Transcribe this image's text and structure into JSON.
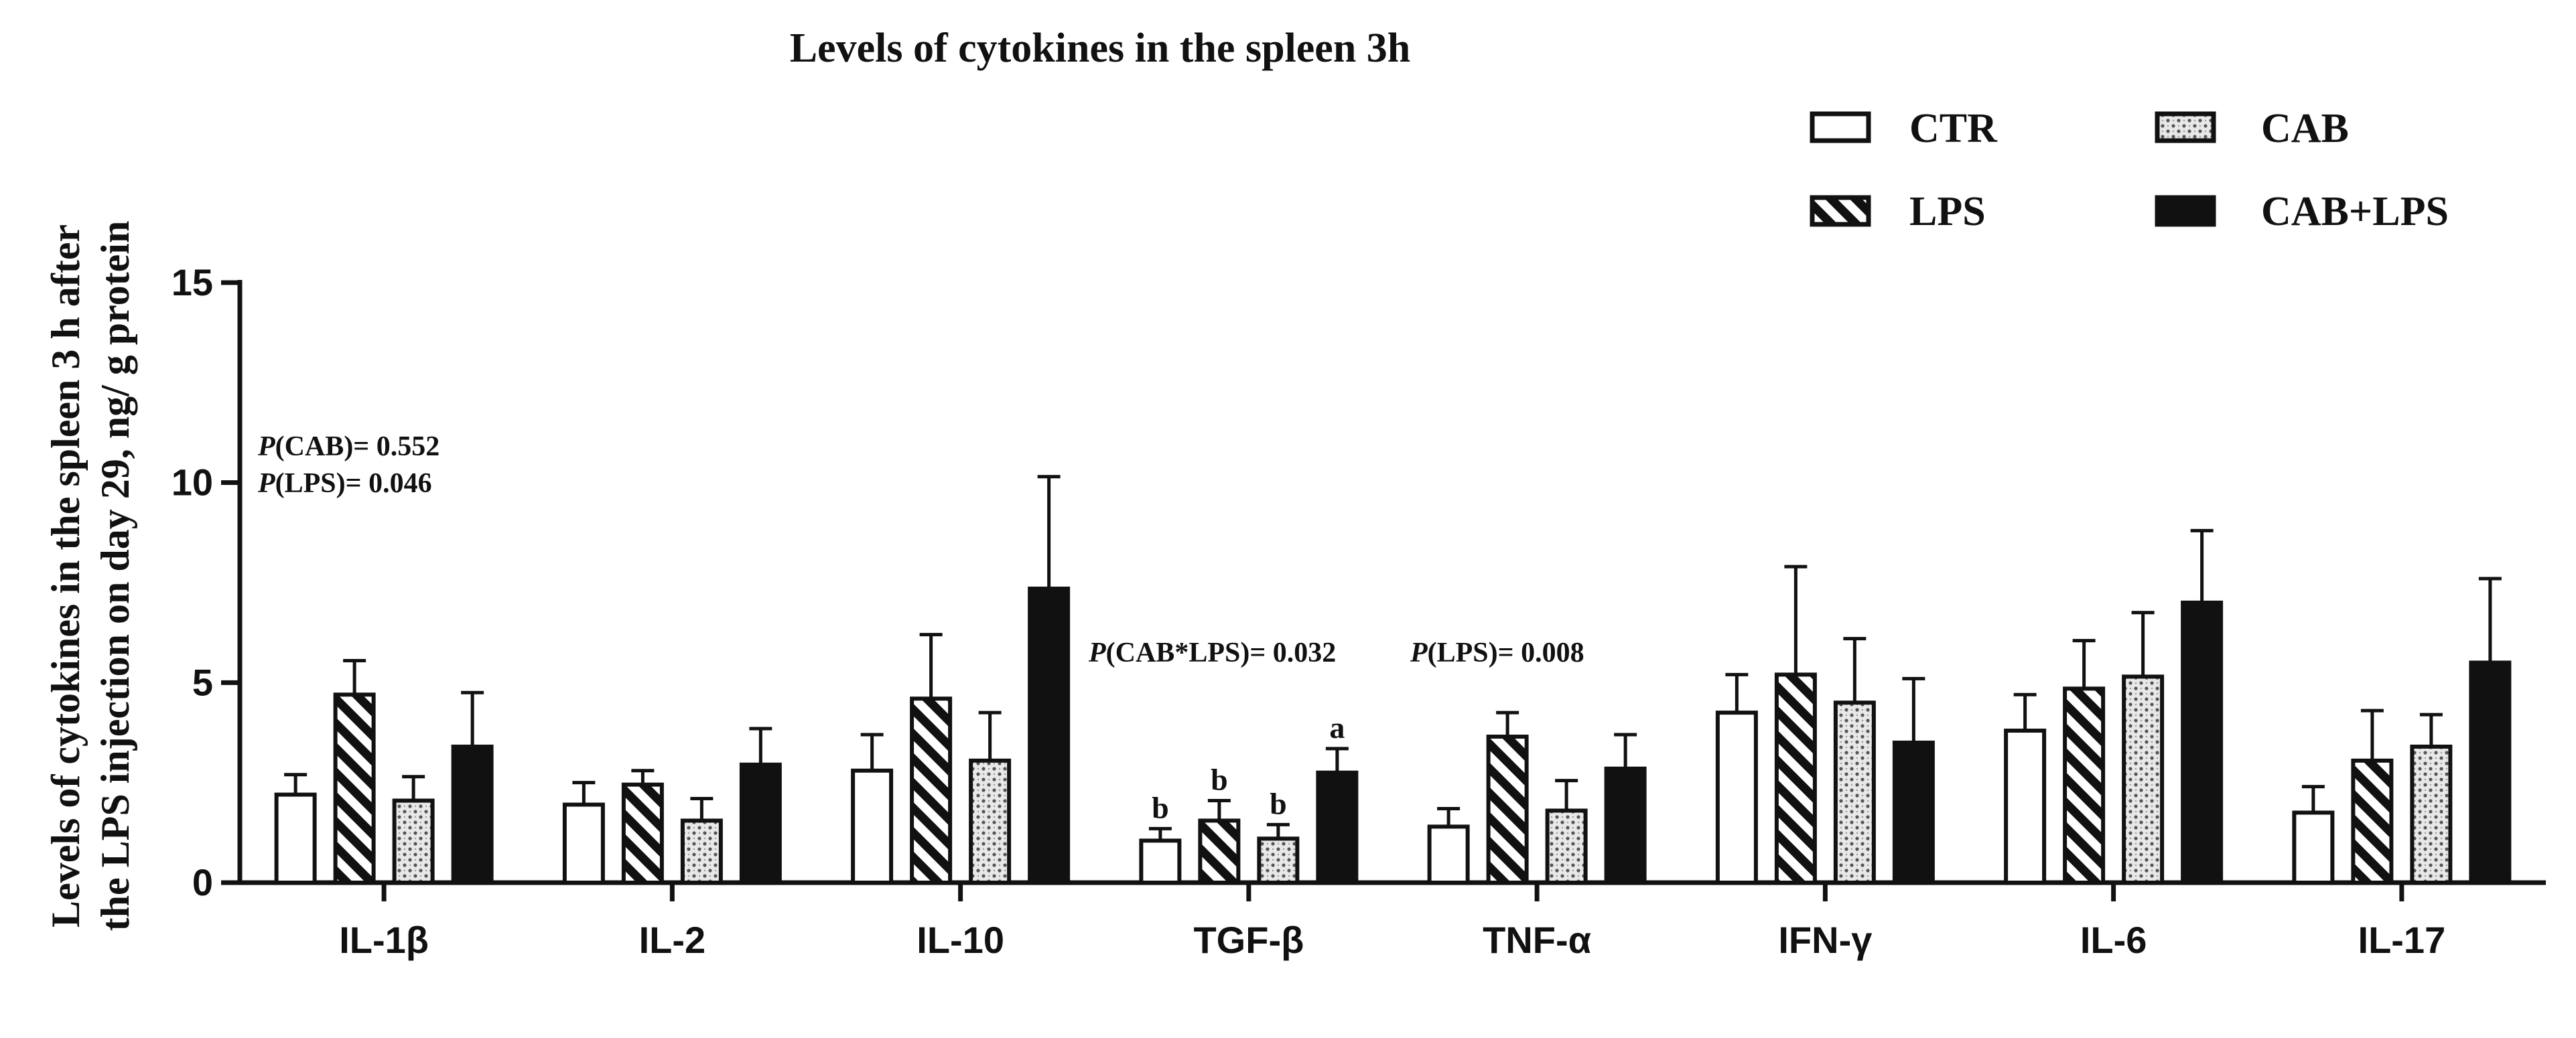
{
  "chart_data": {
    "type": "bar",
    "title": "Levels of cytokines in the spleen 3h",
    "ylabel_lines": [
      "Levels of cytokines in the spleen 3 h after",
      "the LPS injection on day 29,   ng/ g protein"
    ],
    "xlabel": "",
    "ylim": [
      0,
      15
    ],
    "yticks": [
      0,
      5,
      10,
      15
    ],
    "categories": [
      "IL-1β",
      "IL-2",
      "IL-10",
      "TGF-β",
      "TNF-α",
      "IFN-γ",
      "IL-6",
      "IL-17"
    ],
    "series": [
      {
        "name": "CTR",
        "pattern": "open",
        "values": [
          2.2,
          1.95,
          2.8,
          1.05,
          1.4,
          4.25,
          3.8,
          1.75
        ],
        "errors": [
          0.5,
          0.55,
          0.9,
          0.3,
          0.45,
          0.95,
          0.9,
          0.65
        ]
      },
      {
        "name": "LPS",
        "pattern": "hatch",
        "values": [
          4.7,
          2.45,
          4.6,
          1.55,
          3.65,
          5.2,
          4.85,
          3.05
        ],
        "errors": [
          0.85,
          0.35,
          1.6,
          0.5,
          0.6,
          2.7,
          1.2,
          1.25
        ]
      },
      {
        "name": "CAB",
        "pattern": "dots",
        "values": [
          2.05,
          1.55,
          3.05,
          1.1,
          1.8,
          4.5,
          5.15,
          3.4
        ],
        "errors": [
          0.6,
          0.55,
          1.2,
          0.35,
          0.75,
          1.6,
          1.6,
          0.8
        ]
      },
      {
        "name": "CAB+LPS",
        "pattern": "solid",
        "values": [
          3.4,
          2.95,
          7.35,
          2.75,
          2.85,
          3.5,
          7.0,
          5.5
        ],
        "errors": [
          1.35,
          0.9,
          2.8,
          0.6,
          0.85,
          1.6,
          1.8,
          2.1
        ]
      }
    ],
    "significance_letters": [
      {
        "category": "TGF-β",
        "series": "CTR",
        "letter": "b"
      },
      {
        "category": "TGF-β",
        "series": "LPS",
        "letter": "b"
      },
      {
        "category": "TGF-β",
        "series": "CAB",
        "letter": "b"
      },
      {
        "category": "TGF-β",
        "series": "CAB+LPS",
        "letter": "a"
      }
    ],
    "annotations": [
      {
        "prefix": "P",
        "text": "(CAB)= 0.552"
      },
      {
        "prefix": "P",
        "text": "(LPS)= 0.046"
      },
      {
        "prefix": "P",
        "text": "(CAB*LPS)= 0.032"
      },
      {
        "prefix": "P",
        "text": "(LPS)= 0.008"
      }
    ],
    "legend_position": "top-right"
  }
}
